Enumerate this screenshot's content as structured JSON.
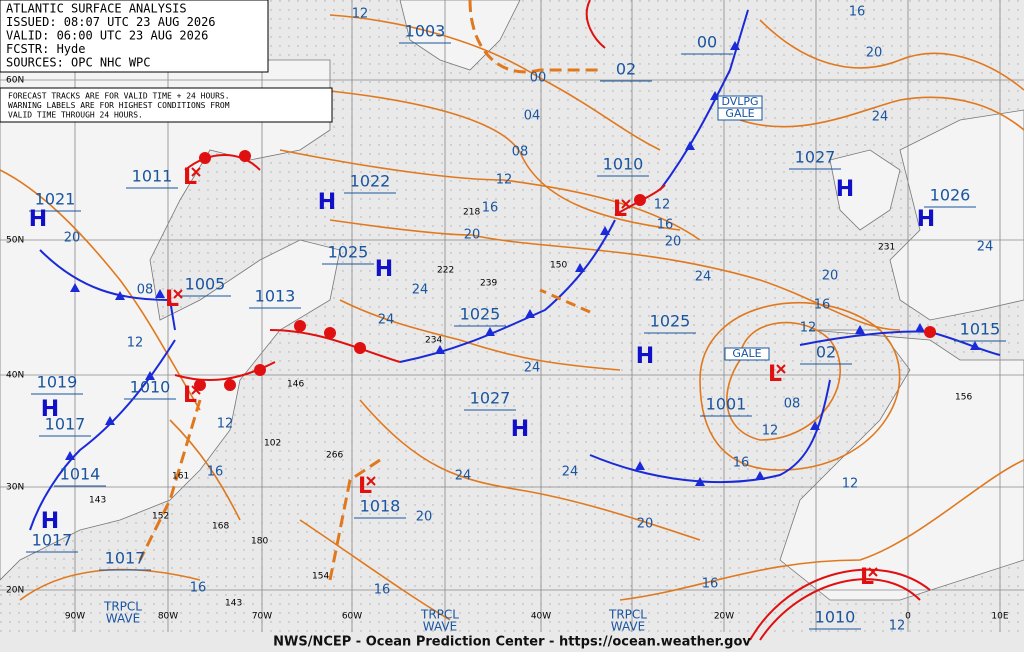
{
  "header": {
    "lines": [
      "ATLANTIC SURFACE ANALYSIS",
      "ISSUED: 08:07 UTC 23 AUG 2026",
      "VALID: 06:00 UTC 23 AUG 2026",
      "FCSTR: Hyde",
      "SOURCES: OPC NHC WPC"
    ]
  },
  "note": {
    "lines": [
      "FORECAST TRACKS ARE FOR VALID TIME + 24 HOURS.",
      "WARNING LABELS ARE FOR HIGHEST CONDITIONS FROM",
      "VALID TIME THROUGH 24 HOURS."
    ]
  },
  "pressure_labels": [
    "1003",
    "00",
    "02",
    "1010",
    "1027",
    "1026",
    "1011",
    "1022",
    "1021",
    "1025",
    "1005",
    "1013",
    "1025",
    "1025",
    "1019",
    "1010",
    "1017",
    "1014",
    "1017",
    "1017",
    "1027",
    "1001",
    "02",
    "1015",
    "1018",
    "1010"
  ],
  "highs": [
    "H",
    "H",
    "H",
    "H",
    "H",
    "H",
    "H",
    "H",
    "H"
  ],
  "lows": [
    "L",
    "L",
    "L",
    "L",
    "L",
    "L",
    "L"
  ],
  "isobar_labels": [
    "12",
    "16",
    "20",
    "00",
    "04",
    "08",
    "12",
    "16",
    "20",
    "24",
    "24",
    "16",
    "20",
    "24",
    "24",
    "20",
    "16",
    "12",
    "08",
    "12",
    "16",
    "24",
    "24",
    "24",
    "20",
    "20",
    "16",
    "16",
    "12",
    "12",
    "20",
    "08",
    "12",
    "12",
    "16",
    "16",
    "24",
    "12"
  ],
  "station_values": [
    "218",
    "222",
    "239",
    "150",
    "234",
    "146",
    "102",
    "266",
    "161",
    "143",
    "152",
    "168",
    "180",
    "154",
    "143",
    "156",
    "231"
  ],
  "latitudes": [
    "60N",
    "50N",
    "40N",
    "30N",
    "20N"
  ],
  "longitudes": [
    "90W",
    "80W",
    "70W",
    "60W",
    "40W",
    "20W",
    "0",
    "10E"
  ],
  "warnings": [
    "DVLPG",
    "GALE",
    "GALE"
  ],
  "waves": [
    [
      "TRPCL",
      "WAVE"
    ],
    [
      "TRPCL",
      "WAVE"
    ],
    [
      "TRPCL",
      "WAVE"
    ]
  ],
  "footer": "NWS/NCEP - Ocean Prediction Center - https://ocean.weather.gov"
}
